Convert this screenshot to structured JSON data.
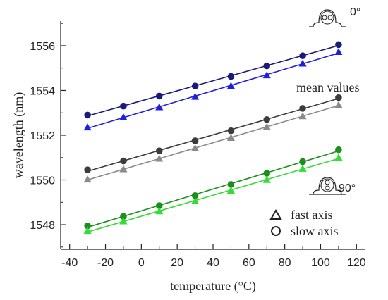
{
  "chart_data": {
    "type": "line",
    "xlabel": "temperature (°C)",
    "ylabel": "wavelength (nm)",
    "xlim": [
      -45,
      125
    ],
    "ylim": [
      1546.9,
      1557.1
    ],
    "xticks": [
      -40,
      -20,
      0,
      20,
      40,
      60,
      80,
      100,
      120
    ],
    "yticks": [
      1548,
      1550,
      1552,
      1554,
      1556
    ],
    "grid": false,
    "x": [
      -30,
      -10,
      10,
      30,
      50,
      70,
      90,
      110
    ],
    "series": [
      {
        "group": "0deg",
        "axis": "slow",
        "marker": "circle",
        "color": "#1a1a7a",
        "values": [
          1552.9,
          1553.3,
          1553.75,
          1554.2,
          1554.63,
          1555.1,
          1555.55,
          1556.05
        ]
      },
      {
        "group": "0deg",
        "axis": "fast",
        "marker": "triangle",
        "color": "#1f1fe0",
        "values": [
          1552.35,
          1552.8,
          1553.25,
          1553.72,
          1554.2,
          1554.68,
          1555.2,
          1555.72
        ]
      },
      {
        "group": "mean",
        "axis": "slow",
        "marker": "circle",
        "color": "#3c3c3c",
        "values": [
          1550.45,
          1550.85,
          1551.3,
          1551.75,
          1552.2,
          1552.7,
          1553.2,
          1553.68
        ]
      },
      {
        "group": "mean",
        "axis": "fast",
        "marker": "triangle",
        "color": "#8a8a8a",
        "values": [
          1550.02,
          1550.48,
          1550.95,
          1551.42,
          1551.88,
          1552.37,
          1552.85,
          1553.35
        ]
      },
      {
        "group": "90deg",
        "axis": "slow",
        "marker": "circle",
        "color": "#1a8f1a",
        "values": [
          1547.95,
          1548.37,
          1548.85,
          1549.3,
          1549.8,
          1550.3,
          1550.82,
          1551.35
        ]
      },
      {
        "group": "90deg",
        "axis": "fast",
        "marker": "triangle",
        "color": "#33dd33",
        "values": [
          1547.72,
          1548.15,
          1548.6,
          1549.05,
          1549.52,
          1550.0,
          1550.5,
          1551.0
        ]
      }
    ],
    "annotations": {
      "deg0": "0°",
      "mean": "mean values",
      "deg90": "90°"
    },
    "legend": {
      "placement": "bottom-right",
      "fast": "fast axis",
      "slow": "slow axis"
    }
  }
}
